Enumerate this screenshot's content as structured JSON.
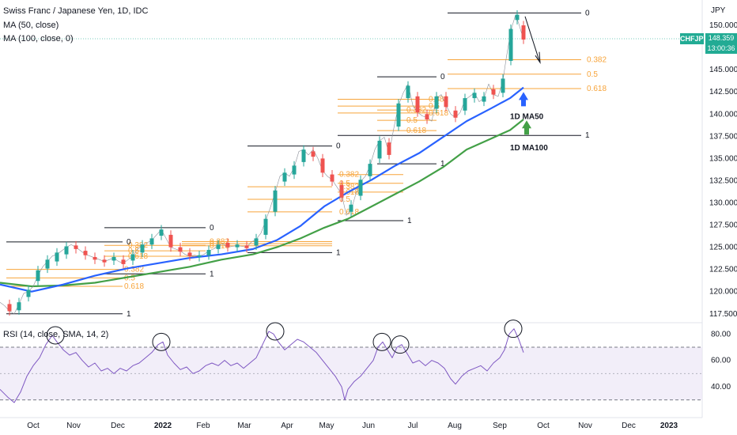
{
  "legend": {
    "title": "Swiss Franc / Japanese Yen, 1D, IDC",
    "ma50": "MA (50, close)",
    "ma100": "MA (100, close, 0)",
    "rsi": "RSI (14, close, SMA, 14, 2)"
  },
  "currency": "JPY",
  "price_badge": {
    "symbol": "CHFJPY",
    "price": "148.359",
    "countdown": "13:00:36"
  },
  "colors": {
    "up": "#26a69a",
    "down": "#ef5350",
    "ma50": "#2962ff",
    "ma100": "#43a047",
    "fib": "#f7a43a",
    "rsi": "#7e57c2",
    "band": "#ede7f6"
  },
  "chart_data": {
    "type": "line",
    "x": [
      "Oct",
      "Nov",
      "Dec",
      "2022",
      "Feb",
      "Mar",
      "Apr",
      "May",
      "Jun",
      "Jul",
      "Aug",
      "Sep",
      "Oct",
      "Nov",
      "Dec",
      "2023"
    ],
    "price_axis": {
      "ylim": [
        116.5,
        152.5
      ],
      "ticks": [
        "150.000",
        "147.500",
        "145.000",
        "142.500",
        "140.000",
        "137.500",
        "135.000",
        "132.500",
        "130.000",
        "127.500",
        "125.000",
        "122.500",
        "120.000",
        "117.500"
      ]
    },
    "rsi_axis": {
      "ylim": [
        25,
        85
      ],
      "ticks": [
        "80.00",
        "60.00",
        "40.00"
      ],
      "band": [
        30,
        70
      ],
      "mid": 50
    },
    "price_path": [
      [
        0,
        118.8
      ],
      [
        6,
        118.4
      ],
      [
        12,
        117.8
      ],
      [
        18,
        117.5
      ],
      [
        24,
        118.6
      ],
      [
        30,
        119.8
      ],
      [
        36,
        120.0
      ],
      [
        42,
        120.6
      ],
      [
        48,
        121.8
      ],
      [
        54,
        122.8
      ],
      [
        60,
        123.4
      ],
      [
        66,
        124.0
      ],
      [
        72,
        124.2
      ],
      [
        78,
        124.6
      ],
      [
        84,
        125.0
      ],
      [
        90,
        125.3
      ],
      [
        96,
        125.0
      ],
      [
        102,
        124.6
      ],
      [
        108,
        124.2
      ],
      [
        114,
        124.0
      ],
      [
        120,
        123.8
      ],
      [
        126,
        123.6
      ],
      [
        132,
        123.4
      ],
      [
        138,
        123.6
      ],
      [
        144,
        123.8
      ],
      [
        150,
        123.4
      ],
      [
        156,
        123.2
      ],
      [
        162,
        123.6
      ],
      [
        168,
        124.0
      ],
      [
        174,
        124.8
      ],
      [
        180,
        125.2
      ],
      [
        186,
        125.5
      ],
      [
        192,
        125.8
      ],
      [
        198,
        126.4
      ],
      [
        204,
        127.0
      ],
      [
        210,
        126.0
      ],
      [
        216,
        125.0
      ],
      [
        222,
        124.8
      ],
      [
        228,
        124.6
      ],
      [
        234,
        124.2
      ],
      [
        240,
        124.0
      ],
      [
        246,
        124.1
      ],
      [
        252,
        124.0
      ],
      [
        258,
        124.2
      ],
      [
        264,
        124.6
      ],
      [
        270,
        124.8
      ],
      [
        276,
        125.2
      ],
      [
        282,
        125.4
      ],
      [
        288,
        125.0
      ],
      [
        294,
        125.1
      ],
      [
        300,
        125.2
      ],
      [
        306,
        125.1
      ],
      [
        312,
        125.0
      ],
      [
        318,
        125.6
      ],
      [
        324,
        125.9
      ],
      [
        330,
        126.6
      ],
      [
        336,
        128.0
      ],
      [
        342,
        129.5
      ],
      [
        348,
        131.2
      ],
      [
        354,
        133.0
      ],
      [
        360,
        133.4
      ],
      [
        366,
        133.0
      ],
      [
        372,
        134.0
      ],
      [
        378,
        135.8
      ],
      [
        384,
        136.0
      ],
      [
        390,
        135.4
      ],
      [
        396,
        136.0
      ],
      [
        402,
        135.0
      ],
      [
        408,
        133.6
      ],
      [
        414,
        133.0
      ],
      [
        420,
        132.6
      ],
      [
        426,
        131.8
      ],
      [
        432,
        131.0
      ],
      [
        438,
        128.6
      ],
      [
        444,
        129.2
      ],
      [
        450,
        131.0
      ],
      [
        456,
        132.4
      ],
      [
        462,
        133.0
      ],
      [
        468,
        134.2
      ],
      [
        474,
        136.0
      ],
      [
        480,
        137.0
      ],
      [
        486,
        137.4
      ],
      [
        492,
        135.6
      ],
      [
        498,
        138.4
      ],
      [
        504,
        141.0
      ],
      [
        510,
        142.4
      ],
      [
        516,
        143.4
      ],
      [
        522,
        141.0
      ],
      [
        528,
        140.2
      ],
      [
        534,
        139.8
      ],
      [
        540,
        139.6
      ],
      [
        546,
        139.2
      ],
      [
        552,
        141.8
      ],
      [
        558,
        142.2
      ],
      [
        564,
        141.0
      ],
      [
        570,
        140.0
      ],
      [
        576,
        139.6
      ],
      [
        582,
        140.2
      ],
      [
        588,
        141.6
      ],
      [
        594,
        142.0
      ],
      [
        600,
        142.4
      ],
      [
        606,
        141.4
      ],
      [
        612,
        141.8
      ],
      [
        618,
        143.4
      ],
      [
        624,
        142.2
      ],
      [
        630,
        142.0
      ],
      [
        636,
        143.8
      ],
      [
        640,
        146.2
      ],
      [
        646,
        149.4
      ],
      [
        652,
        151.2
      ],
      [
        656,
        150.2
      ],
      [
        660,
        149.0
      ],
      [
        664,
        148.4
      ]
    ],
    "candles": [
      {
        "x": 12,
        "o": 118.6,
        "c": 117.8
      },
      {
        "x": 24,
        "o": 117.9,
        "c": 118.8
      },
      {
        "x": 36,
        "o": 119.4,
        "c": 120.2
      },
      {
        "x": 48,
        "o": 121.2,
        "c": 122.4
      },
      {
        "x": 60,
        "o": 122.6,
        "c": 123.6
      },
      {
        "x": 72,
        "o": 123.4,
        "c": 124.4
      },
      {
        "x": 84,
        "o": 124.2,
        "c": 125.1
      },
      {
        "x": 96,
        "o": 125.2,
        "c": 124.8
      },
      {
        "x": 108,
        "o": 124.6,
        "c": 124.1
      },
      {
        "x": 120,
        "o": 123.9,
        "c": 123.6
      },
      {
        "x": 132,
        "o": 123.6,
        "c": 123.3
      },
      {
        "x": 144,
        "o": 123.5,
        "c": 123.9
      },
      {
        "x": 156,
        "o": 123.6,
        "c": 123.1
      },
      {
        "x": 168,
        "o": 123.5,
        "c": 124.2
      },
      {
        "x": 180,
        "o": 124.4,
        "c": 125.3
      },
      {
        "x": 192,
        "o": 125.3,
        "c": 126.0
      },
      {
        "x": 204,
        "o": 126.3,
        "c": 127.0
      },
      {
        "x": 216,
        "o": 126.4,
        "c": 125.0
      },
      {
        "x": 228,
        "o": 125.0,
        "c": 124.5
      },
      {
        "x": 240,
        "o": 124.4,
        "c": 124.0
      },
      {
        "x": 252,
        "o": 123.9,
        "c": 124.1
      },
      {
        "x": 264,
        "o": 124.1,
        "c": 124.7
      },
      {
        "x": 276,
        "o": 124.8,
        "c": 125.3
      },
      {
        "x": 288,
        "o": 125.5,
        "c": 125.0
      },
      {
        "x": 300,
        "o": 125.0,
        "c": 125.3
      },
      {
        "x": 312,
        "o": 125.2,
        "c": 124.9
      },
      {
        "x": 324,
        "o": 125.2,
        "c": 126.0
      },
      {
        "x": 336,
        "o": 126.4,
        "c": 128.2
      },
      {
        "x": 348,
        "o": 129.0,
        "c": 131.4
      },
      {
        "x": 360,
        "o": 132.4,
        "c": 133.4
      },
      {
        "x": 372,
        "o": 133.2,
        "c": 134.2
      },
      {
        "x": 384,
        "o": 134.6,
        "c": 136.0
      },
      {
        "x": 396,
        "o": 135.8,
        "c": 135.2
      },
      {
        "x": 408,
        "o": 135.0,
        "c": 133.4
      },
      {
        "x": 420,
        "o": 133.2,
        "c": 132.4
      },
      {
        "x": 432,
        "o": 132.0,
        "c": 130.6
      },
      {
        "x": 444,
        "o": 129.0,
        "c": 129.8
      },
      {
        "x": 456,
        "o": 130.8,
        "c": 132.6
      },
      {
        "x": 468,
        "o": 133.0,
        "c": 134.4
      },
      {
        "x": 480,
        "o": 135.0,
        "c": 137.0
      },
      {
        "x": 492,
        "o": 136.8,
        "c": 135.4
      },
      {
        "x": 504,
        "o": 138.6,
        "c": 141.2
      },
      {
        "x": 516,
        "o": 141.8,
        "c": 143.2
      },
      {
        "x": 528,
        "o": 142.0,
        "c": 140.2
      },
      {
        "x": 540,
        "o": 140.0,
        "c": 139.4
      },
      {
        "x": 552,
        "o": 140.6,
        "c": 142.0
      },
      {
        "x": 564,
        "o": 142.0,
        "c": 140.8
      },
      {
        "x": 576,
        "o": 140.4,
        "c": 139.6
      },
      {
        "x": 588,
        "o": 140.4,
        "c": 141.8
      },
      {
        "x": 600,
        "o": 141.8,
        "c": 142.4
      },
      {
        "x": 612,
        "o": 141.4,
        "c": 142.0
      },
      {
        "x": 624,
        "o": 142.8,
        "c": 142.2
      },
      {
        "x": 636,
        "o": 142.4,
        "c": 144.0
      },
      {
        "x": 646,
        "o": 146.0,
        "c": 149.6
      },
      {
        "x": 654,
        "o": 150.6,
        "c": 151.2
      },
      {
        "x": 662,
        "o": 150.0,
        "c": 148.4
      }
    ],
    "ma50": [
      [
        0,
        120.8
      ],
      [
        40,
        120.0
      ],
      [
        80,
        120.8
      ],
      [
        120,
        121.8
      ],
      [
        160,
        122.6
      ],
      [
        200,
        123.2
      ],
      [
        240,
        123.8
      ],
      [
        280,
        124.2
      ],
      [
        320,
        124.8
      ],
      [
        350,
        125.8
      ],
      [
        380,
        127.4
      ],
      [
        410,
        129.6
      ],
      [
        440,
        131.2
      ],
      [
        470,
        132.6
      ],
      [
        500,
        134.2
      ],
      [
        530,
        135.6
      ],
      [
        560,
        137.4
      ],
      [
        590,
        139.2
      ],
      [
        620,
        140.6
      ],
      [
        645,
        141.8
      ],
      [
        662,
        143.0
      ]
    ],
    "ma100": [
      [
        0,
        121.0
      ],
      [
        40,
        120.6
      ],
      [
        80,
        120.7
      ],
      [
        120,
        121.0
      ],
      [
        160,
        121.6
      ],
      [
        200,
        122.2
      ],
      [
        240,
        122.8
      ],
      [
        280,
        123.6
      ],
      [
        320,
        124.2
      ],
      [
        350,
        125.0
      ],
      [
        380,
        126.0
      ],
      [
        410,
        127.2
      ],
      [
        440,
        128.2
      ],
      [
        470,
        129.6
      ],
      [
        500,
        131.0
      ],
      [
        530,
        132.4
      ],
      [
        560,
        134.0
      ],
      [
        590,
        136.0
      ],
      [
        620,
        137.2
      ],
      [
        645,
        138.2
      ],
      [
        662,
        139.4
      ]
    ],
    "rsi": [
      [
        0,
        38
      ],
      [
        10,
        32
      ],
      [
        18,
        28
      ],
      [
        26,
        36
      ],
      [
        34,
        48
      ],
      [
        42,
        56
      ],
      [
        50,
        62
      ],
      [
        58,
        72
      ],
      [
        66,
        79
      ],
      [
        72,
        74
      ],
      [
        80,
        68
      ],
      [
        88,
        64
      ],
      [
        96,
        66
      ],
      [
        104,
        60
      ],
      [
        112,
        55
      ],
      [
        120,
        58
      ],
      [
        128,
        52
      ],
      [
        136,
        54
      ],
      [
        144,
        50
      ],
      [
        152,
        54
      ],
      [
        160,
        52
      ],
      [
        168,
        56
      ],
      [
        176,
        58
      ],
      [
        184,
        62
      ],
      [
        192,
        66
      ],
      [
        200,
        72
      ],
      [
        206,
        74
      ],
      [
        212,
        64
      ],
      [
        220,
        58
      ],
      [
        228,
        53
      ],
      [
        236,
        55
      ],
      [
        244,
        50
      ],
      [
        252,
        52
      ],
      [
        260,
        56
      ],
      [
        268,
        58
      ],
      [
        276,
        56
      ],
      [
        284,
        60
      ],
      [
        292,
        56
      ],
      [
        300,
        58
      ],
      [
        308,
        54
      ],
      [
        316,
        58
      ],
      [
        324,
        62
      ],
      [
        332,
        72
      ],
      [
        340,
        82
      ],
      [
        346,
        80
      ],
      [
        352,
        74
      ],
      [
        360,
        68
      ],
      [
        368,
        72
      ],
      [
        376,
        76
      ],
      [
        384,
        74
      ],
      [
        392,
        70
      ],
      [
        400,
        66
      ],
      [
        408,
        60
      ],
      [
        416,
        54
      ],
      [
        424,
        48
      ],
      [
        432,
        40
      ],
      [
        436,
        30
      ],
      [
        440,
        38
      ],
      [
        448,
        44
      ],
      [
        456,
        48
      ],
      [
        464,
        54
      ],
      [
        472,
        60
      ],
      [
        478,
        70
      ],
      [
        484,
        74
      ],
      [
        490,
        68
      ],
      [
        496,
        62
      ],
      [
        502,
        70
      ],
      [
        508,
        72
      ],
      [
        514,
        66
      ],
      [
        522,
        58
      ],
      [
        530,
        60
      ],
      [
        538,
        56
      ],
      [
        546,
        60
      ],
      [
        554,
        58
      ],
      [
        562,
        54
      ],
      [
        570,
        46
      ],
      [
        576,
        42
      ],
      [
        584,
        48
      ],
      [
        592,
        52
      ],
      [
        600,
        54
      ],
      [
        608,
        56
      ],
      [
        616,
        52
      ],
      [
        624,
        58
      ],
      [
        632,
        62
      ],
      [
        638,
        68
      ],
      [
        644,
        80
      ],
      [
        650,
        84
      ],
      [
        656,
        76
      ],
      [
        662,
        66
      ]
    ],
    "fib_sets": [
      {
        "x1": 8,
        "x2": 155,
        "top": 125.6,
        "bottom": 117.5,
        "levels": [
          "0.382",
          "0.5",
          "0.618"
        ],
        "label_x": 155
      },
      {
        "x1": 132,
        "x2": 260,
        "top": 127.2,
        "bottom": 122.0,
        "levels": [
          "0.382",
          "0.5",
          "0.618"
        ],
        "label_x": 160
      },
      {
        "x1": 230,
        "x2": 420,
        "top": 126.4,
        "bottom": 124.4,
        "levels": [
          "0.382",
          "0.5",
          "0.618"
        ],
        "label_x": 263
      },
      {
        "x1": 313,
        "x2": 420,
        "top": 136.4,
        "bottom": 124.4,
        "levels": [
          "0.382",
          "0.5",
          "0.618"
        ],
        "label_x": 427
      },
      {
        "x1": 427,
        "x2": 510,
        "top": 136.4,
        "bottom": 128.0,
        "levels": [
          "0.382",
          "0.5",
          "0.618"
        ],
        "label_x": 427
      },
      {
        "x1": 477,
        "x2": 552,
        "top": 144.2,
        "bottom": 134.4,
        "levels": [
          "0.382",
          "0.5",
          "0.618"
        ],
        "label_x": 512
      },
      {
        "x1": 427,
        "x2": 555,
        "top": 144.2,
        "bottom": 137.6,
        "levels": [
          "0.382",
          "0.5",
          "0.618"
        ],
        "label_x": 540
      },
      {
        "x1": 566,
        "x2": 735,
        "top": 151.4,
        "bottom": 137.6,
        "levels": [
          "0.382",
          "0.5",
          "0.618"
        ],
        "label_x": 740
      }
    ],
    "fib_lines": [
      {
        "x1": 8,
        "x2": 155,
        "y": 125.6,
        "label": "0"
      },
      {
        "x1": 8,
        "x2": 155,
        "y": 117.5,
        "label": "1"
      },
      {
        "x1": 132,
        "x2": 260,
        "y": 127.2,
        "label": "0"
      },
      {
        "x1": 132,
        "x2": 260,
        "y": 122.0,
        "label": "1"
      },
      {
        "x1": 313,
        "x2": 420,
        "y": 136.4,
        "label": "0"
      },
      {
        "x1": 313,
        "x2": 420,
        "y": 124.4,
        "label": "1"
      },
      {
        "x1": 427,
        "x2": 510,
        "y": 128.0,
        "label": "1"
      },
      {
        "x1": 477,
        "x2": 552,
        "y": 144.2,
        "label": "0"
      },
      {
        "x1": 477,
        "x2": 552,
        "y": 134.4,
        "label": "1"
      },
      {
        "x1": 427,
        "x2": 735,
        "y": 137.6,
        "label": "1"
      },
      {
        "x1": 566,
        "x2": 735,
        "y": 151.4,
        "label": "0"
      }
    ],
    "annotations": [
      {
        "text": "1D MA50",
        "x": 645,
        "y": 140.0
      },
      {
        "text": "1D MA100",
        "x": 645,
        "y": 137.0
      }
    ],
    "rsi_circles": [
      [
        70,
        79
      ],
      [
        204,
        74
      ],
      [
        348,
        82
      ],
      [
        483,
        74
      ],
      [
        506,
        72
      ],
      [
        649,
        84
      ]
    ]
  }
}
